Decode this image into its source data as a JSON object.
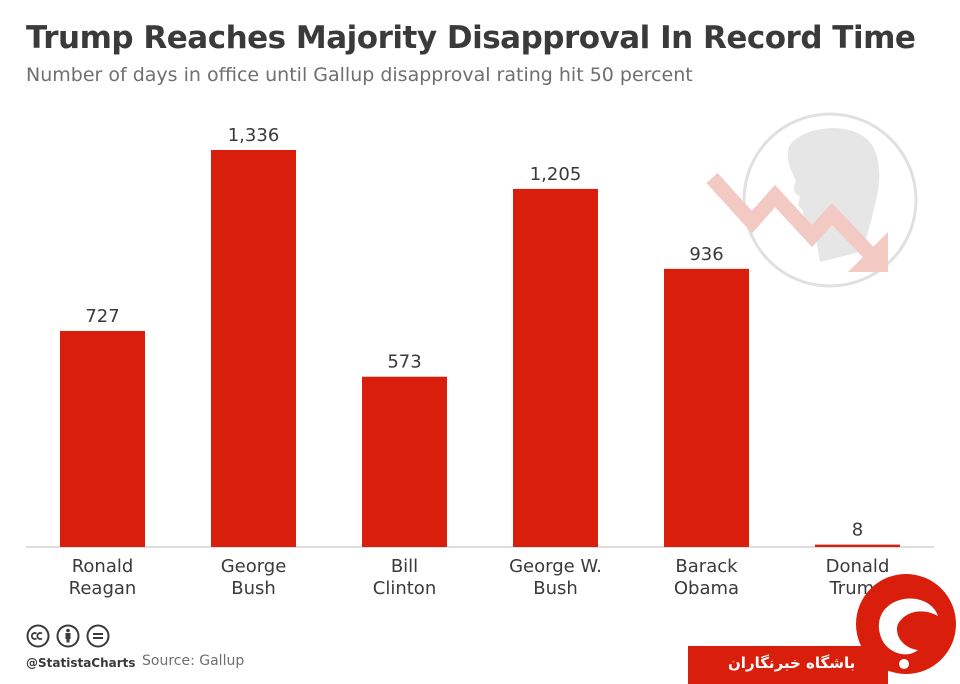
{
  "header": {
    "title": "Trump Reaches Majority Disapproval In Record Time",
    "subtitle": "Number of days in office until Gallup disapproval rating hit 50 percent"
  },
  "footer": {
    "handle": "@StatistaCharts",
    "source": "Source: Gallup",
    "license_icons": [
      "cc-icon",
      "by-icon",
      "nd-icon"
    ]
  },
  "watermark": {
    "text": "باشگاه خبرنگاران"
  },
  "colors": {
    "bar": "#d91e0b",
    "text": "#3a3a3a",
    "subtle": "#6f6f6f",
    "baseline": "#bbbbbb"
  },
  "chart_data": {
    "type": "bar",
    "categories": [
      [
        "Ronald",
        "Reagan"
      ],
      [
        "George",
        "Bush"
      ],
      [
        "Bill",
        "Clinton"
      ],
      [
        "George W.",
        "Bush"
      ],
      [
        "Barack",
        "Obama"
      ],
      [
        "Donald",
        "Trump"
      ]
    ],
    "values": [
      727,
      1336,
      573,
      1205,
      936,
      8
    ],
    "value_labels": [
      "727",
      "1,336",
      "573",
      "1,205",
      "936",
      "8"
    ],
    "title": "Trump Reaches Majority Disapproval In Record Time",
    "subtitle": "Number of days in office until Gallup disapproval rating hit 50 percent",
    "xlabel": "",
    "ylabel": "",
    "grid": false,
    "legend": "none"
  }
}
